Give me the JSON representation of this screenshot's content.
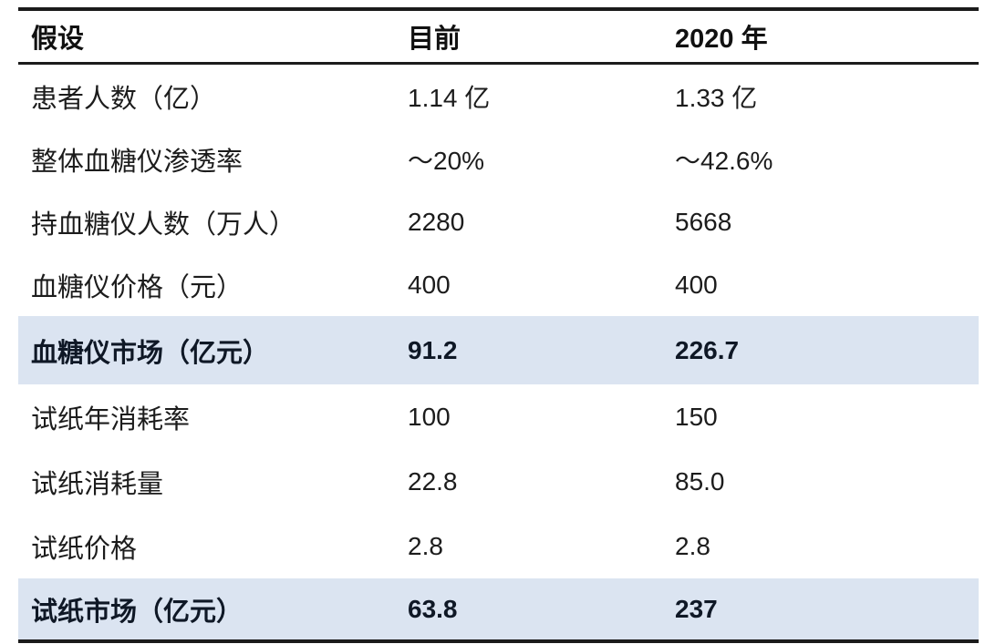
{
  "chart_data": {
    "type": "table",
    "columns": [
      "假设",
      "目前",
      "2020 年"
    ],
    "rows": [
      {
        "label": "患者人数（亿）",
        "current": "1.14 亿",
        "in_2020": "1.33 亿",
        "highlight": false
      },
      {
        "label": "整体血糖仪渗透率",
        "current": "～20%",
        "in_2020": "～42.6%",
        "highlight": false
      },
      {
        "label": "持血糖仪人数（万人）",
        "current": "2280",
        "in_2020": "5668",
        "highlight": false
      },
      {
        "label": "血糖仪价格（元）",
        "current": "400",
        "in_2020": "400",
        "highlight": false
      },
      {
        "label": "血糖仪市场（亿元）",
        "current": "91.2",
        "in_2020": "226.7",
        "highlight": true
      },
      {
        "label": "试纸年消耗率",
        "current": "100",
        "in_2020": "150",
        "highlight": false
      },
      {
        "label": "试纸消耗量",
        "current": "22.8",
        "in_2020": "85.0",
        "highlight": false
      },
      {
        "label": "试纸价格",
        "current": "2.8",
        "in_2020": "2.8",
        "highlight": false
      },
      {
        "label": "试纸市场（亿元）",
        "current": "63.8",
        "in_2020": "237",
        "highlight": true
      }
    ],
    "highlight_row_indices": [
      4,
      8
    ],
    "colors": {
      "highlight_row_bg": "#dbe4f1",
      "rule_color": "#1b1b1b",
      "text_color": "#1c1c1c"
    },
    "layout": {
      "grid": "horizontal-rules-only",
      "legend": "none"
    }
  }
}
